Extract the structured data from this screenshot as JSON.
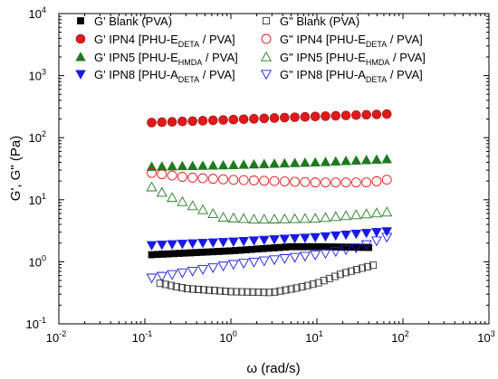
{
  "chart_data": {
    "type": "scatter",
    "title": "",
    "xlabel": "ω (rad/s)",
    "ylabel": "G', G\" (Pa)",
    "x_scale": "log",
    "y_scale": "log",
    "xlim": [
      0.01,
      1000
    ],
    "ylim": [
      0.1,
      10000
    ],
    "grid": false,
    "legend_position": "top",
    "x_ticks": [
      {
        "value": 0.01,
        "base": "10",
        "exp": "-2"
      },
      {
        "value": 0.1,
        "base": "10",
        "exp": "-1"
      },
      {
        "value": 1,
        "base": "10",
        "exp": "0"
      },
      {
        "value": 10,
        "base": "10",
        "exp": "1"
      },
      {
        "value": 100,
        "base": "10",
        "exp": "2"
      },
      {
        "value": 1000,
        "base": "10",
        "exp": "3"
      }
    ],
    "y_ticks": [
      {
        "value": 0.1,
        "base": "10",
        "exp": "-1"
      },
      {
        "value": 1,
        "base": "10",
        "exp": "0"
      },
      {
        "value": 10,
        "base": "10",
        "exp": "1"
      },
      {
        "value": 100,
        "base": "10",
        "exp": "2"
      },
      {
        "value": 1000,
        "base": "10",
        "exp": "3"
      },
      {
        "value": 10000,
        "base": "10",
        "exp": "4"
      }
    ],
    "series": [
      {
        "name": "G' Blank (PVA)",
        "label": {
          "pre": "G' Blank (PVA)",
          "sub": "",
          "post": ""
        },
        "marker": "square",
        "filled": true,
        "color": "#000000",
        "x_range": [
          0.12,
          40
        ],
        "n_points": 40,
        "y_anchors": [
          [
            0.12,
            1.3
          ],
          [
            1,
            1.5
          ],
          [
            5,
            1.75
          ],
          [
            10,
            1.75
          ],
          [
            40,
            1.7
          ]
        ]
      },
      {
        "name": "G' IPN4 [PHU-EDETA / PVA]",
        "label": {
          "pre": "G' IPN4 [PHU-E",
          "sub": "DETA",
          "post": " / PVA]"
        },
        "marker": "circle",
        "filled": true,
        "color": "#e0191b",
        "edge": "#8a1a1a",
        "x_range": [
          0.12,
          65
        ],
        "n_points": 24,
        "y_anchors": [
          [
            0.12,
            175
          ],
          [
            1,
            195
          ],
          [
            10,
            220
          ],
          [
            65,
            240
          ]
        ]
      },
      {
        "name": "G' IPN5 [PHU-EHMDA / PVA]",
        "label": {
          "pre": "G' IPN5 [PHU-E",
          "sub": "HMDA",
          "post": " / PVA]"
        },
        "marker": "triangle-up",
        "filled": true,
        "color": "#1f7a1f",
        "x_range": [
          0.12,
          65
        ],
        "n_points": 24,
        "y_anchors": [
          [
            0.12,
            34
          ],
          [
            1,
            36
          ],
          [
            10,
            40
          ],
          [
            65,
            45
          ]
        ]
      },
      {
        "name": "G' IPN8 [PHU-ADETA / PVA]",
        "label": {
          "pre": "G' IPN8 [PHU-A",
          "sub": "DETA",
          "post": " / PVA]"
        },
        "marker": "triangle-down",
        "filled": true,
        "color": "#1a1ae6",
        "x_range": [
          0.12,
          65
        ],
        "n_points": 24,
        "y_anchors": [
          [
            0.12,
            1.85
          ],
          [
            1,
            2.1
          ],
          [
            10,
            2.5
          ],
          [
            65,
            3.1
          ]
        ]
      },
      {
        "name": "G\" Blank (PVA)",
        "label": {
          "pre": "G\" Blank (PVA)",
          "sub": "",
          "post": ""
        },
        "marker": "square",
        "filled": false,
        "color": "#333333",
        "x_range": [
          0.15,
          45
        ],
        "n_points": 40,
        "y_anchors": [
          [
            0.15,
            0.45
          ],
          [
            0.3,
            0.37
          ],
          [
            1,
            0.33
          ],
          [
            3,
            0.32
          ],
          [
            6,
            0.38
          ],
          [
            10,
            0.45
          ],
          [
            20,
            0.65
          ],
          [
            45,
            0.88
          ]
        ]
      },
      {
        "name": "G\" IPN4 [PHU-EDETA / PVA]",
        "label": {
          "pre": "G\" IPN4 [PHU-E",
          "sub": "DETA",
          "post": " / PVA]"
        },
        "marker": "circle",
        "filled": false,
        "color": "#e0191b",
        "x_range": [
          0.12,
          65
        ],
        "n_points": 24,
        "y_anchors": [
          [
            0.12,
            27
          ],
          [
            0.3,
            23
          ],
          [
            1,
            21
          ],
          [
            10,
            19
          ],
          [
            40,
            19
          ],
          [
            65,
            21
          ]
        ]
      },
      {
        "name": "G\" IPN5 [PHU-EHMDA / PVA]",
        "label": {
          "pre": "G\" IPN5 [PHU-E",
          "sub": "HMDA",
          "post": " / PVA]"
        },
        "marker": "triangle-up",
        "filled": false,
        "color": "#1f7a1f",
        "x_range": [
          0.12,
          65
        ],
        "n_points": 24,
        "y_anchors": [
          [
            0.12,
            16
          ],
          [
            0.2,
            11
          ],
          [
            0.4,
            7.5
          ],
          [
            0.8,
            5.2
          ],
          [
            2,
            4.8
          ],
          [
            10,
            5.0
          ],
          [
            65,
            6.3
          ]
        ]
      },
      {
        "name": "G\" IPN8 [PHU-ADETA / PVA]",
        "label": {
          "pre": "G\" IPN8 [PHU-A",
          "sub": "DETA",
          "post": " / PVA]"
        },
        "marker": "triangle-down",
        "filled": false,
        "color": "#1a1ae6",
        "x_range": [
          0.12,
          65
        ],
        "n_points": 24,
        "y_anchors": [
          [
            0.12,
            0.55
          ],
          [
            1,
            0.9
          ],
          [
            10,
            1.3
          ],
          [
            30,
            1.7
          ],
          [
            65,
            2.5
          ]
        ]
      }
    ]
  }
}
